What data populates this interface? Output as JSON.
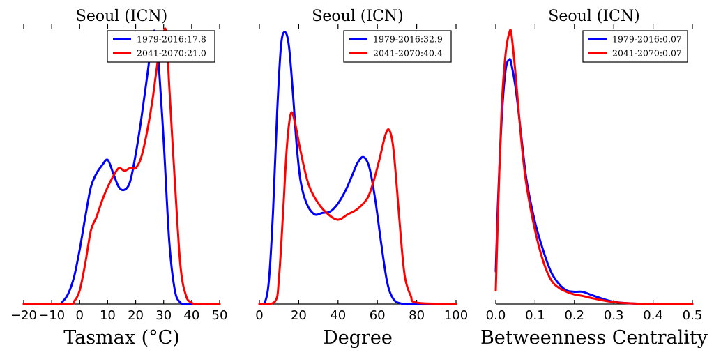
{
  "chart_data": [
    {
      "type": "line",
      "title": "Seoul (ICN)",
      "xlabel": "Tasmax ($^\\circ$C)",
      "xlabel_display": "Tasmax (°C)",
      "ylabel": "",
      "xlim": [
        -20,
        50
      ],
      "ylim": [
        0,
        1
      ],
      "xticks": [
        -20,
        -10,
        0,
        10,
        20,
        30,
        40,
        50
      ],
      "xtick_labels": [
        "−20",
        "−10",
        "0",
        "10",
        "20",
        "30",
        "40",
        "50"
      ],
      "legend_position": "top-right",
      "series": [
        {
          "name": "1979-2016:17.8",
          "color": "#0000ff",
          "x": [
            -20,
            -8,
            -6,
            -4,
            -2,
            0,
            2,
            4,
            6,
            8,
            10,
            12,
            14,
            16,
            18,
            20,
            22,
            24,
            26,
            27,
            28,
            30,
            32,
            34,
            36,
            38,
            40,
            50
          ],
          "y": [
            0,
            0,
            0.01,
            0.04,
            0.1,
            0.2,
            0.32,
            0.43,
            0.48,
            0.51,
            0.53,
            0.48,
            0.43,
            0.42,
            0.45,
            0.55,
            0.68,
            0.83,
            0.98,
            1.0,
            0.92,
            0.6,
            0.23,
            0.05,
            0.005,
            0,
            0,
            0
          ]
        },
        {
          "name": "2041-2070:21.0",
          "color": "#ff0000",
          "x": [
            -20,
            -4,
            -2,
            0,
            2,
            4,
            6,
            8,
            10,
            12,
            14,
            16,
            18,
            20,
            22,
            24,
            26,
            28,
            30,
            31,
            32,
            34,
            36,
            38,
            40,
            42,
            50
          ],
          "y": [
            0,
            0,
            0.01,
            0.05,
            0.15,
            0.27,
            0.32,
            0.38,
            0.43,
            0.47,
            0.5,
            0.49,
            0.5,
            0.5,
            0.54,
            0.63,
            0.75,
            0.9,
            1.0,
            0.99,
            0.8,
            0.45,
            0.14,
            0.03,
            0.005,
            0,
            0
          ]
        }
      ]
    },
    {
      "type": "line",
      "title": "Seoul (ICN)",
      "xlabel": "Degree",
      "xlabel_display": "Degree",
      "ylabel": "",
      "xlim": [
        0,
        100
      ],
      "ylim": [
        0,
        1
      ],
      "xticks": [
        0,
        20,
        40,
        60,
        80,
        100
      ],
      "xtick_labels": [
        "0",
        "20",
        "40",
        "60",
        "80",
        "100"
      ],
      "legend_position": "top-right",
      "series": [
        {
          "name": "1979-2016:32.9",
          "color": "#0000ff",
          "x": [
            0,
            3,
            5,
            7,
            9,
            11,
            13,
            15,
            17,
            19,
            21,
            24,
            28,
            32,
            36,
            40,
            44,
            47,
            50,
            53,
            56,
            59,
            62,
            65,
            68,
            72,
            80,
            100
          ],
          "y": [
            0,
            0.01,
            0.1,
            0.35,
            0.7,
            0.95,
            1.0,
            0.95,
            0.78,
            0.58,
            0.45,
            0.37,
            0.33,
            0.335,
            0.34,
            0.37,
            0.42,
            0.47,
            0.52,
            0.54,
            0.5,
            0.38,
            0.22,
            0.08,
            0.02,
            0.002,
            0,
            0
          ]
        },
        {
          "name": "2041-2070:40.4",
          "color": "#ff0000",
          "x": [
            0,
            8,
            10,
            12,
            14,
            16,
            18,
            21,
            25,
            30,
            35,
            40,
            45,
            50,
            55,
            58,
            61,
            64,
            66,
            68,
            70,
            72,
            74,
            77,
            80,
            100
          ],
          "y": [
            0,
            0.01,
            0.1,
            0.33,
            0.58,
            0.7,
            0.67,
            0.56,
            0.44,
            0.37,
            0.33,
            0.31,
            0.33,
            0.35,
            0.39,
            0.45,
            0.53,
            0.62,
            0.64,
            0.58,
            0.42,
            0.24,
            0.1,
            0.03,
            0.005,
            0
          ]
        }
      ]
    },
    {
      "type": "line",
      "title": "Seoul (ICN)",
      "xlabel": "Betweenness Centrality",
      "xlabel_display": "Betweenness Centrality",
      "ylabel": "",
      "xlim": [
        0,
        0.5
      ],
      "ylim": [
        0,
        1
      ],
      "xticks": [
        0,
        0.1,
        0.2,
        0.3,
        0.4,
        0.5
      ],
      "xtick_labels": [
        "0.0",
        "0.1",
        "0.2",
        "0.3",
        "0.4",
        "0.5"
      ],
      "legend_position": "top-right",
      "series": [
        {
          "name": "1979-2016:0.07",
          "color": "#0000ff",
          "x": [
            0,
            0.005,
            0.015,
            0.025,
            0.035,
            0.04,
            0.05,
            0.06,
            0.07,
            0.08,
            0.1,
            0.12,
            0.14,
            0.16,
            0.18,
            0.2,
            0.22,
            0.24,
            0.26,
            0.3,
            0.35,
            0.4,
            0.5
          ],
          "y": [
            0.12,
            0.35,
            0.68,
            0.86,
            0.9,
            0.88,
            0.8,
            0.68,
            0.55,
            0.44,
            0.3,
            0.2,
            0.12,
            0.075,
            0.05,
            0.045,
            0.045,
            0.035,
            0.025,
            0.008,
            0.002,
            0,
            0
          ]
        },
        {
          "name": "2041-2070:0.07",
          "color": "#ff0000",
          "x": [
            0,
            0.005,
            0.015,
            0.025,
            0.035,
            0.04,
            0.05,
            0.06,
            0.07,
            0.08,
            0.1,
            0.12,
            0.14,
            0.16,
            0.18,
            0.2,
            0.22,
            0.25,
            0.3,
            0.35,
            0.4,
            0.5
          ],
          "y": [
            0.05,
            0.3,
            0.72,
            0.92,
            1.0,
            0.99,
            0.85,
            0.68,
            0.53,
            0.42,
            0.27,
            0.16,
            0.09,
            0.06,
            0.045,
            0.035,
            0.03,
            0.02,
            0.007,
            0.002,
            0,
            0
          ]
        }
      ]
    }
  ]
}
